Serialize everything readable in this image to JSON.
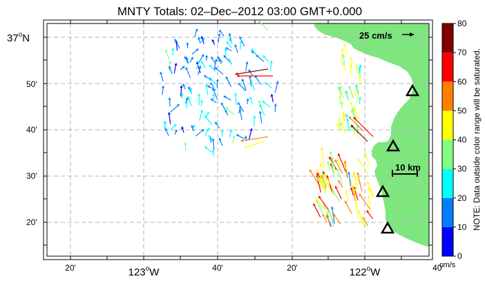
{
  "title": "MNTY Totals: 02–Dec–2012 03:00 GMT+0.000",
  "lat_top_label": "37",
  "lat_top_suffix": "N",
  "lat_labels": [
    "50'",
    "40'",
    "30'",
    "20'"
  ],
  "lon_labels": [
    {
      "text": "20'",
      "deg": false
    },
    {
      "text": "123",
      "deg": true,
      "suffix": "W"
    },
    {
      "text": "40'",
      "deg": false
    },
    {
      "text": "20'",
      "deg": false
    },
    {
      "text": "122",
      "deg": true,
      "suffix": "W"
    },
    {
      "text": "40'",
      "deg": false
    }
  ],
  "scale_arrow_label": "25 cm/s",
  "distance_scale_label": "10 km",
  "colorbar": {
    "ticks": [
      "0",
      "10",
      "20",
      "30",
      "40",
      "50",
      "60",
      "70",
      "80"
    ],
    "unit": "cm/s",
    "note": "NOTE: Data outside color range will be saturated.",
    "colors": [
      "#0000ff",
      "#0080ff",
      "#00ffff",
      "#80ff80",
      "#ffff00",
      "#ff8000",
      "#ff0000",
      "#800000"
    ]
  },
  "colors": {
    "land": "#7fe57f",
    "grid": "#b0b0b0",
    "station": "#000000"
  }
}
